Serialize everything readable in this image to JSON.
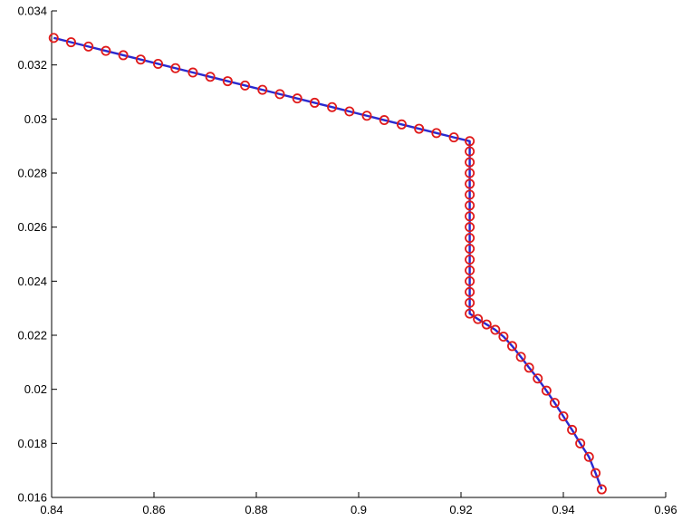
{
  "chart_data": {
    "type": "line",
    "title": "",
    "xlabel": "",
    "ylabel": "",
    "xlim": [
      0.84,
      0.96
    ],
    "ylim": [
      0.016,
      0.034
    ],
    "xticks": [
      0.84,
      0.86,
      0.88,
      0.9,
      0.92,
      0.94,
      0.96
    ],
    "yticks": [
      0.016,
      0.018,
      0.02,
      0.022,
      0.024,
      0.026,
      0.028,
      0.03,
      0.032,
      0.034
    ],
    "xtick_labels": [
      "0.84",
      "0.86",
      "0.88",
      "0.9",
      "0.92",
      "0.94",
      "0.96"
    ],
    "ytick_labels": [
      "0.016",
      "0.018",
      "0.02",
      "0.022",
      "0.024",
      "0.026",
      "0.028",
      "0.03",
      "0.032",
      "0.034"
    ],
    "grid": false,
    "legend": "none",
    "series": [
      {
        "role": "line",
        "color": "#2a2ad0",
        "style": "solid",
        "x": [
          0.8404,
          0.8438,
          0.8472,
          0.8506,
          0.854,
          0.8574,
          0.8608,
          0.8642,
          0.8676,
          0.871,
          0.8744,
          0.8778,
          0.8812,
          0.8846,
          0.888,
          0.8914,
          0.8948,
          0.8982,
          0.9016,
          0.905,
          0.9084,
          0.9118,
          0.9152,
          0.9186,
          0.9217,
          0.9217,
          0.9217,
          0.9217,
          0.9217,
          0.9217,
          0.9217,
          0.9217,
          0.9217,
          0.9217,
          0.9217,
          0.9217,
          0.9217,
          0.9217,
          0.9217,
          0.9217,
          0.9217,
          0.9233,
          0.925,
          0.9267,
          0.9283,
          0.93,
          0.9317,
          0.9333,
          0.935,
          0.9367,
          0.9383,
          0.94,
          0.9417,
          0.9433,
          0.945,
          0.9463,
          0.9475
        ],
        "y": [
          0.033,
          0.03284,
          0.03268,
          0.03252,
          0.03236,
          0.0322,
          0.03204,
          0.03188,
          0.03172,
          0.03156,
          0.0314,
          0.03124,
          0.03108,
          0.03092,
          0.03076,
          0.0306,
          0.03044,
          0.03028,
          0.03012,
          0.02996,
          0.0298,
          0.02964,
          0.02948,
          0.02932,
          0.02918,
          0.0288,
          0.0284,
          0.028,
          0.0276,
          0.0272,
          0.0268,
          0.0264,
          0.026,
          0.0256,
          0.0252,
          0.0248,
          0.0244,
          0.024,
          0.0236,
          0.0232,
          0.0228,
          0.0226,
          0.0224,
          0.0222,
          0.02195,
          0.0216,
          0.0212,
          0.0208,
          0.0204,
          0.01995,
          0.0195,
          0.019,
          0.0185,
          0.018,
          0.0175,
          0.0169,
          0.0163
        ]
      },
      {
        "role": "markers",
        "color": "#e01a1a",
        "marker": "circle",
        "x": [
          0.8404,
          0.8438,
          0.8472,
          0.8506,
          0.854,
          0.8574,
          0.8608,
          0.8642,
          0.8676,
          0.871,
          0.8744,
          0.8778,
          0.8812,
          0.8846,
          0.888,
          0.8914,
          0.8948,
          0.8982,
          0.9016,
          0.905,
          0.9084,
          0.9118,
          0.9152,
          0.9186,
          0.9217,
          0.9217,
          0.9217,
          0.9217,
          0.9217,
          0.9217,
          0.9217,
          0.9217,
          0.9217,
          0.9217,
          0.9217,
          0.9217,
          0.9217,
          0.9217,
          0.9217,
          0.9217,
          0.9217,
          0.9233,
          0.925,
          0.9267,
          0.9283,
          0.93,
          0.9317,
          0.9333,
          0.935,
          0.9367,
          0.9383,
          0.94,
          0.9417,
          0.9433,
          0.945,
          0.9463,
          0.9475
        ],
        "y": [
          0.033,
          0.03284,
          0.03268,
          0.03252,
          0.03236,
          0.0322,
          0.03204,
          0.03188,
          0.03172,
          0.03156,
          0.0314,
          0.03124,
          0.03108,
          0.03092,
          0.03076,
          0.0306,
          0.03044,
          0.03028,
          0.03012,
          0.02996,
          0.0298,
          0.02964,
          0.02948,
          0.02932,
          0.02918,
          0.0288,
          0.0284,
          0.028,
          0.0276,
          0.0272,
          0.0268,
          0.0264,
          0.026,
          0.0256,
          0.0252,
          0.0248,
          0.0244,
          0.024,
          0.0236,
          0.0232,
          0.0228,
          0.0226,
          0.0224,
          0.0222,
          0.02195,
          0.0216,
          0.0212,
          0.0208,
          0.0204,
          0.01995,
          0.0195,
          0.019,
          0.0185,
          0.018,
          0.0175,
          0.0169,
          0.0163
        ]
      }
    ]
  }
}
